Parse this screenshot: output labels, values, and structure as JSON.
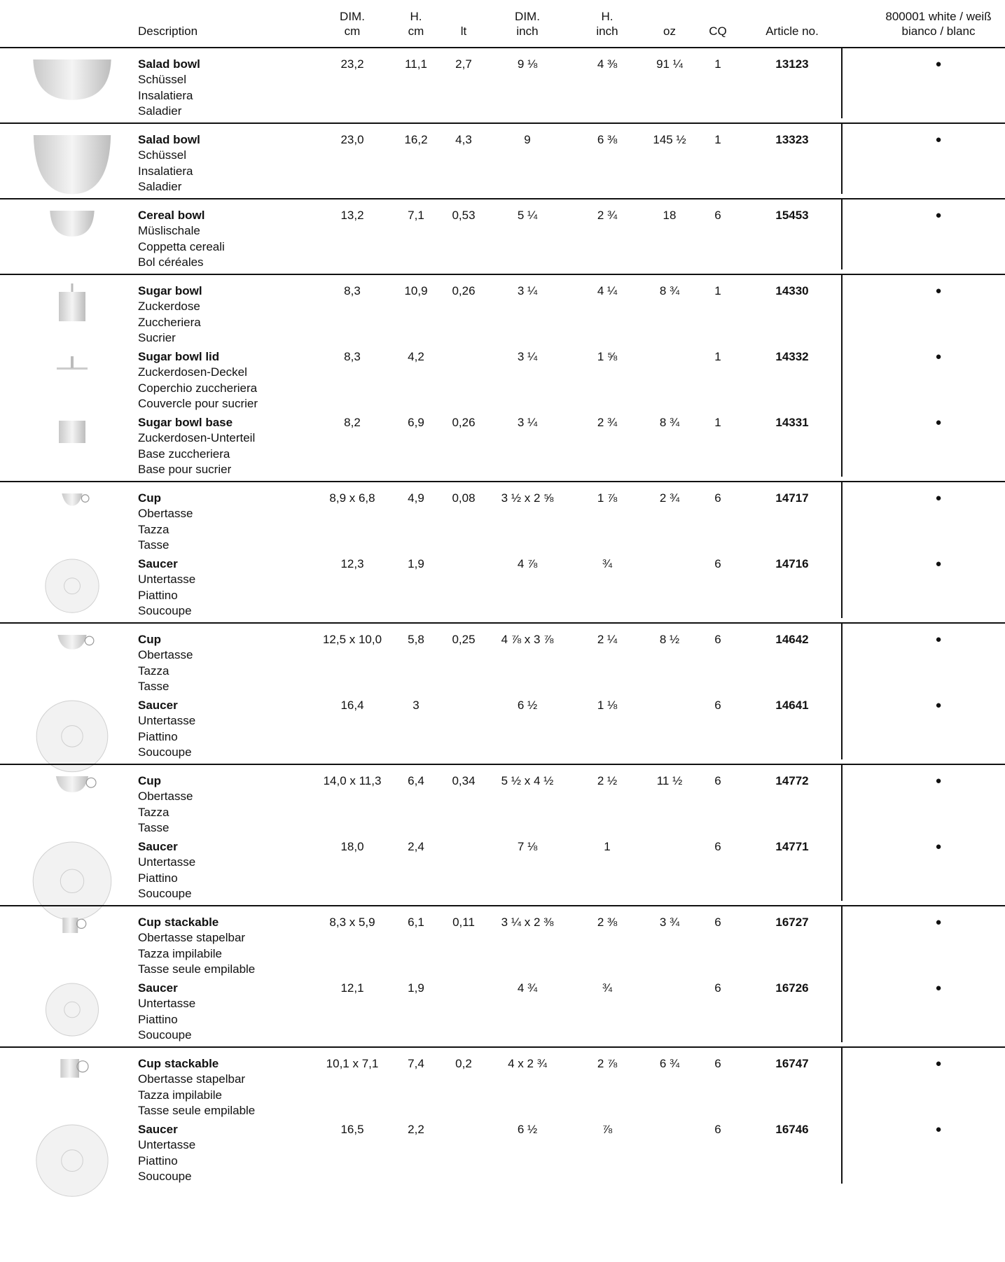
{
  "header": {
    "columns": [
      [
        "Description"
      ],
      [
        "DIM.",
        "cm"
      ],
      [
        "H.",
        "cm"
      ],
      [
        "lt"
      ],
      [
        "DIM.",
        "inch"
      ],
      [
        "H.",
        "inch"
      ],
      [
        "oz"
      ],
      [
        "CQ"
      ],
      [
        "Article no."
      ],
      [
        "800001 white / weiß",
        "bianco / blanc"
      ]
    ]
  },
  "groups": [
    {
      "items": [
        {
          "names": [
            "Salad bowl",
            "Schüssel",
            "Insalatiera",
            "Saladier"
          ],
          "cells": [
            "23,2",
            "11,1",
            "2,7",
            "9 ⅛",
            "4 ⅜",
            "91 ¼",
            "1",
            "13123",
            "●"
          ]
        }
      ]
    },
    {
      "items": [
        {
          "names": [
            "Salad bowl",
            "Schüssel",
            "Insalatiera",
            "Saladier"
          ],
          "cells": [
            "23,0",
            "16,2",
            "4,3",
            "9",
            "6 ⅜",
            "145 ½",
            "1",
            "13323",
            "●"
          ]
        }
      ]
    },
    {
      "items": [
        {
          "names": [
            "Cereal bowl",
            "Müslischale",
            "Coppetta cereali",
            "Bol céréales"
          ],
          "cells": [
            "13,2",
            "7,1",
            "0,53",
            "5 ¼",
            "2 ¾",
            "18",
            "6",
            "15453",
            "●"
          ]
        }
      ]
    },
    {
      "items": [
        {
          "names": [
            "Sugar bowl",
            "Zuckerdose",
            "Zuccheriera",
            "Sucrier"
          ],
          "cells": [
            "8,3",
            "10,9",
            "0,26",
            "3 ¼",
            "4 ¼",
            "8 ¾",
            "1",
            "14330",
            "●"
          ]
        },
        {
          "names": [
            "Sugar bowl lid",
            "Zuckerdosen-Deckel",
            "Coperchio zuccheriera",
            "Couvercle pour sucrier"
          ],
          "cells": [
            "8,3",
            "4,2",
            null,
            "3 ¼",
            "1 ⅝",
            null,
            "1",
            "14332",
            "●"
          ]
        },
        {
          "names": [
            "Sugar bowl base",
            "Zuckerdosen-Unterteil",
            "Base zuccheriera",
            "Base pour sucrier"
          ],
          "cells": [
            "8,2",
            "6,9",
            "0,26",
            "3 ¼",
            "2 ¾",
            "8 ¾",
            "1",
            "14331",
            "●"
          ]
        }
      ]
    },
    {
      "items": [
        {
          "names": [
            "Cup",
            "Obertasse",
            "Tazza",
            "Tasse"
          ],
          "cells": [
            "8,9 x 6,8",
            "4,9",
            "0,08",
            "3 ½ x 2 ⅝",
            "1 ⅞",
            "2 ¾",
            "6",
            "14717",
            "●"
          ]
        },
        {
          "names": [
            "Saucer",
            "Untertasse",
            "Piattino",
            "Soucoupe"
          ],
          "cells": [
            "12,3",
            "1,9",
            null,
            "4 ⅞",
            "¾",
            null,
            "6",
            "14716",
            "●"
          ]
        }
      ]
    },
    {
      "items": [
        {
          "names": [
            "Cup",
            "Obertasse",
            "Tazza",
            "Tasse"
          ],
          "cells": [
            "12,5 x 10,0",
            "5,8",
            "0,25",
            "4 ⅞ x 3 ⅞",
            "2 ¼",
            "8 ½",
            "6",
            "14642",
            "●"
          ]
        },
        {
          "names": [
            "Saucer",
            "Untertasse",
            "Piattino",
            "Soucoupe"
          ],
          "cells": [
            "16,4",
            "3",
            null,
            "6 ½",
            "1 ⅛",
            null,
            "6",
            "14641",
            "●"
          ]
        }
      ]
    },
    {
      "items": [
        {
          "names": [
            "Cup",
            "Obertasse",
            "Tazza",
            "Tasse"
          ],
          "cells": [
            "14,0 x 11,3",
            "6,4",
            "0,34",
            "5 ½ x 4 ½",
            "2 ½",
            "11 ½",
            "6",
            "14772",
            "●"
          ]
        },
        {
          "names": [
            "Saucer",
            "Untertasse",
            "Piattino",
            "Soucoupe"
          ],
          "cells": [
            "18,0",
            "2,4",
            null,
            "7 ⅛",
            "1",
            null,
            "6",
            "14771",
            "●"
          ]
        }
      ]
    },
    {
      "items": [
        {
          "names": [
            "Cup stackable",
            "Obertasse stapelbar",
            "Tazza impilabile",
            "Tasse seule empilable"
          ],
          "cells": [
            "8,3 x 5,9",
            "6,1",
            "0,11",
            "3 ¼ x 2 ⅜",
            "2 ⅜",
            "3 ¾",
            "6",
            "16727",
            "●"
          ]
        },
        {
          "names": [
            "Saucer",
            "Untertasse",
            "Piattino",
            "Soucoupe"
          ],
          "cells": [
            "12,1",
            "1,9",
            null,
            "4 ¾",
            "¾",
            null,
            "6",
            "16726",
            "●"
          ]
        }
      ]
    },
    {
      "items": [
        {
          "names": [
            "Cup stackable",
            "Obertasse stapelbar",
            "Tazza impilabile",
            "Tasse seule empilable"
          ],
          "cells": [
            "10,1 x 7,1",
            "7,4",
            "0,2",
            "4 x 2 ¾",
            "2 ⅞",
            "6 ¾",
            "6",
            "16747",
            "●"
          ]
        },
        {
          "names": [
            "Saucer",
            "Untertasse",
            "Piattino",
            "Soucoupe"
          ],
          "cells": [
            "16,5",
            "2,2",
            null,
            "6 ½",
            "⅞",
            null,
            "6",
            "16746",
            "●"
          ]
        }
      ]
    }
  ]
}
